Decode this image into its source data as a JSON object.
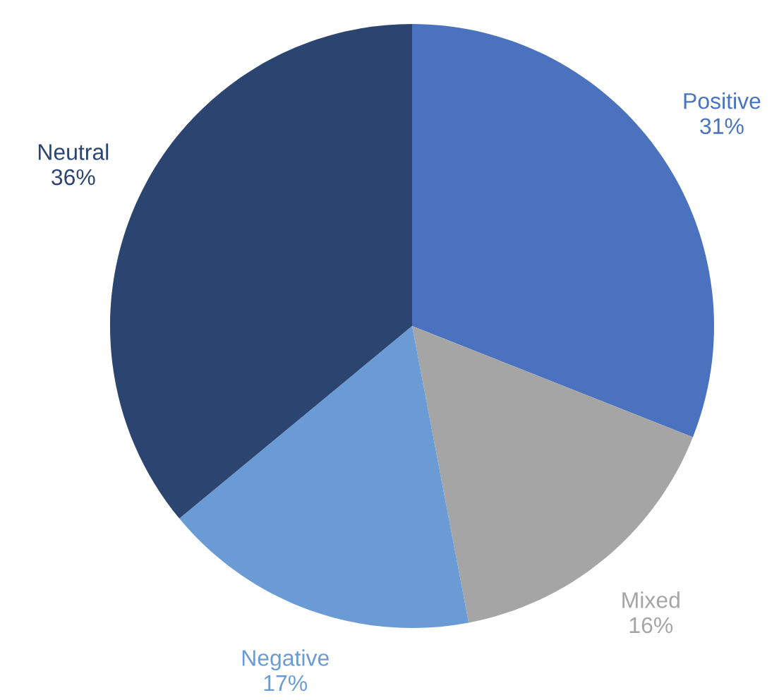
{
  "chart_data": {
    "type": "pie",
    "categories": [
      "Positive",
      "Mixed",
      "Negative",
      "Neutral"
    ],
    "values": [
      31,
      16,
      17,
      36
    ],
    "colors": [
      "#4a72bf",
      "#a5a5a5",
      "#6a9bd5",
      "#2c4470"
    ],
    "value_labels": [
      "31%",
      "16%",
      "17%",
      "36%"
    ]
  }
}
